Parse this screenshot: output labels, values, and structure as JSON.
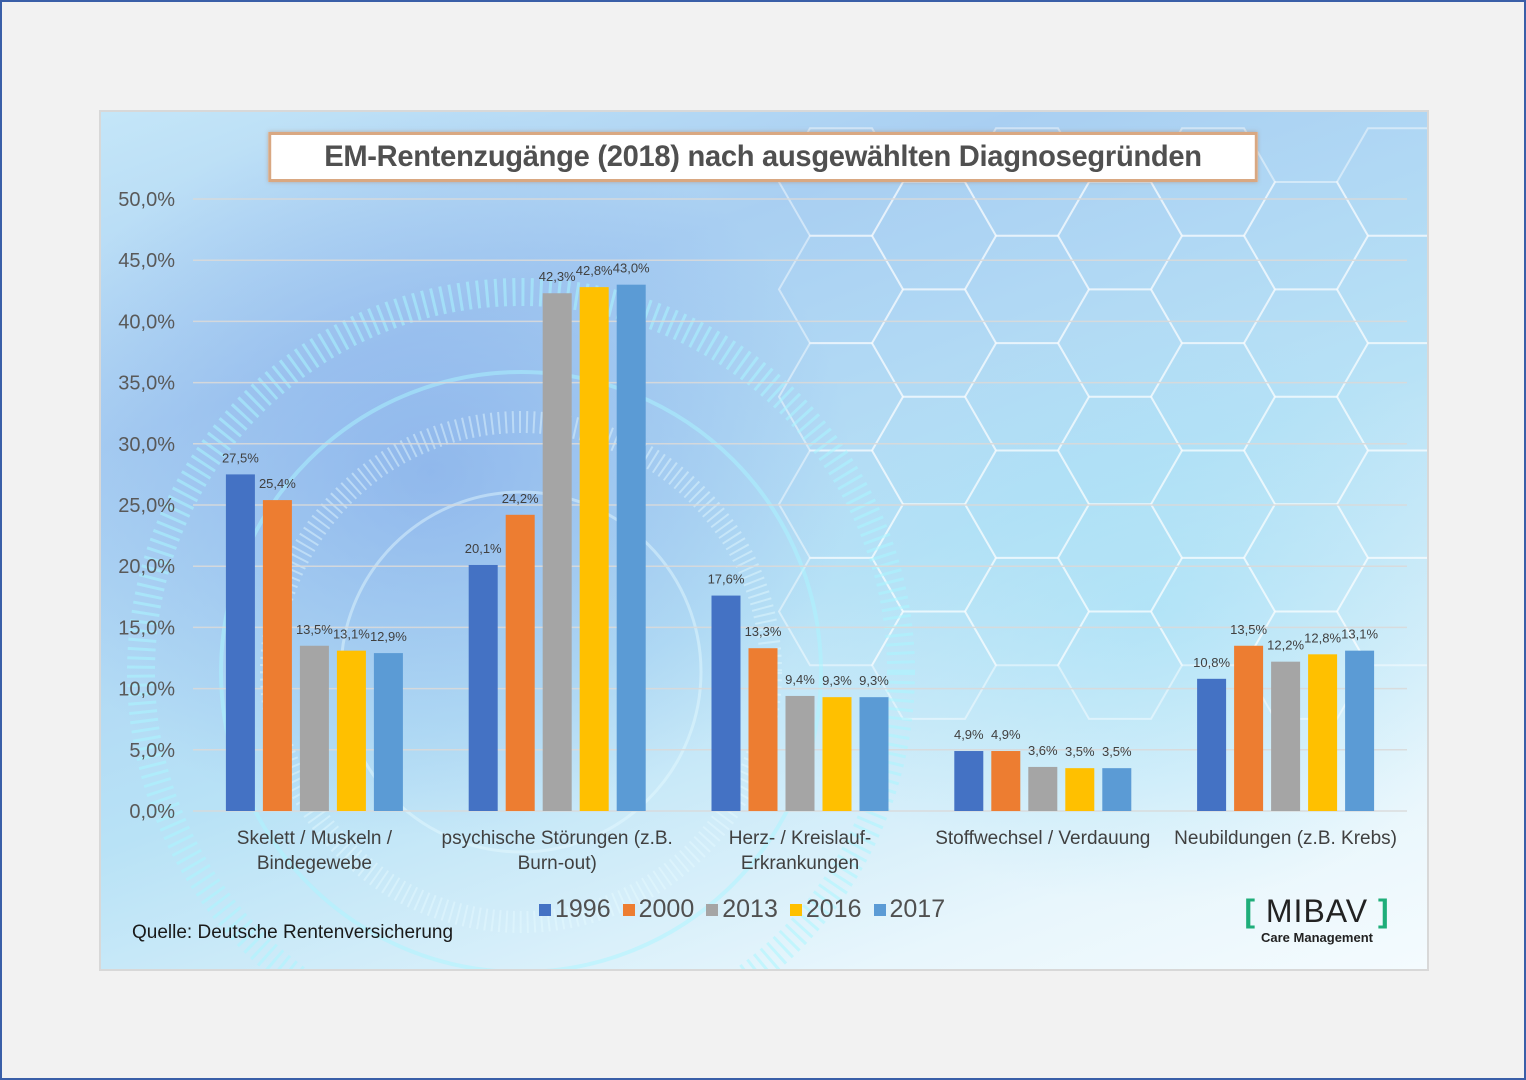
{
  "chart_data": {
    "type": "bar",
    "title": "EM-Rentenzugänge (2018) nach ausgewählten Diagnosegründen",
    "xlabel": "",
    "ylabel": "",
    "ylim": [
      0,
      50
    ],
    "ytick_step": 5,
    "yticks": [
      "0,0%",
      "5,0%",
      "10,0%",
      "15,0%",
      "20,0%",
      "25,0%",
      "30,0%",
      "35,0%",
      "40,0%",
      "45,0%",
      "50,0%"
    ],
    "grid": true,
    "legend_position": "bottom",
    "categories": [
      [
        "Skelett / Muskeln /",
        "Bindegewebe"
      ],
      [
        "psychische Störungen (z.B.",
        "Burn-out)"
      ],
      [
        "Herz- / Kreislauf-",
        "Erkrankungen"
      ],
      [
        "Stoffwechsel / Verdauung"
      ],
      [
        "Neubildungen (z.B. Krebs)"
      ]
    ],
    "series": [
      {
        "name": "1996",
        "color": "#4472c4",
        "values": [
          27.5,
          20.1,
          17.6,
          4.9,
          10.8
        ],
        "labels": [
          "27,5%",
          "20,1%",
          "17,6%",
          "4,9%",
          "10,8%"
        ]
      },
      {
        "name": "2000",
        "color": "#ed7d31",
        "values": [
          25.4,
          24.2,
          13.3,
          4.9,
          13.5
        ],
        "labels": [
          "25,4%",
          "24,2%",
          "13,3%",
          "4,9%",
          "13,5%"
        ]
      },
      {
        "name": "2013",
        "color": "#a5a5a5",
        "values": [
          13.5,
          42.3,
          9.4,
          3.6,
          12.2
        ],
        "labels": [
          "13,5%",
          "42,3%",
          "9,4%",
          "3,6%",
          "12,2%"
        ]
      },
      {
        "name": "2016",
        "color": "#ffc000",
        "values": [
          13.1,
          42.8,
          9.3,
          3.5,
          12.8
        ],
        "labels": [
          "13,1%",
          "42,8%",
          "9,3%",
          "3,5%",
          "12,8%"
        ]
      },
      {
        "name": "2017",
        "color": "#5b9bd5",
        "values": [
          12.9,
          43.0,
          9.3,
          3.5,
          13.1
        ],
        "labels": [
          "12,9%",
          "43,0%",
          "9,3%",
          "3,5%",
          "13,1%"
        ]
      }
    ]
  },
  "source": "Quelle:  Deutsche Rentenversicherung",
  "logo": {
    "open_bracket": "[",
    "name": "MIBAV",
    "close_bracket": "]",
    "subtitle": "Care Management"
  }
}
